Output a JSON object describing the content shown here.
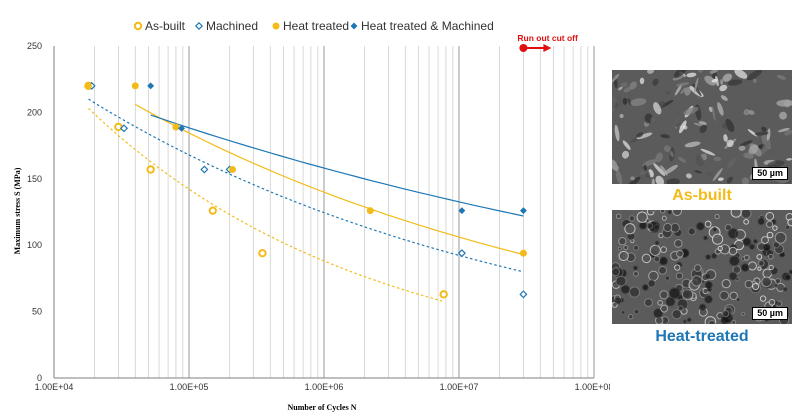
{
  "chart_data": {
    "type": "scatter",
    "x_scale": "log",
    "xlim": [
      10000,
      100000000
    ],
    "ylim": [
      0,
      250
    ],
    "xlabel": "Number  of Cycles N",
    "ylabel": "Maximum  stress S (MPa)",
    "x_ticks": [
      "1.00E+04",
      "1.00E+05",
      "1.00E+06",
      "1.00E+07",
      "1.00E+08"
    ],
    "y_ticks": [
      "0",
      "50",
      "100",
      "150",
      "200",
      "250"
    ],
    "grid": "vertical log grid",
    "legend_position": "top",
    "series": [
      {
        "name": "As-built",
        "marker": "circle-open",
        "color": "#f3bb19",
        "x": [
          18000,
          30000,
          52000,
          150000,
          350000,
          7700000
        ],
        "y": [
          220,
          189,
          157,
          126,
          94,
          63
        ],
        "trend": {
          "style": "dotted",
          "x": [
            18000,
            7500000
          ],
          "y": [
            203,
            58
          ]
        }
      },
      {
        "name": "Machined",
        "marker": "diamond-open",
        "color": "#1f77b4",
        "x": [
          19000,
          33000,
          130000,
          200000,
          10500000,
          30000000
        ],
        "y": [
          220,
          188,
          157,
          157,
          94,
          63
        ],
        "trend": {
          "style": "dotted",
          "x": [
            18000,
            30000000
          ],
          "y": [
            210,
            80
          ]
        }
      },
      {
        "name": "Heat treated",
        "marker": "circle-filled",
        "color": "#f3bb19",
        "x": [
          18000,
          40000,
          80000,
          210000,
          2200000,
          30000000
        ],
        "y": [
          220,
          220,
          189,
          157,
          126,
          94
        ],
        "trend": {
          "style": "solid",
          "x": [
            40000,
            30000000
          ],
          "y": [
            206,
            93
          ]
        }
      },
      {
        "name": "Heat treated & Machined",
        "marker": "diamond-filled",
        "color": "#1f77b4",
        "x": [
          52000,
          88000,
          10500000,
          30000000
        ],
        "y": [
          220,
          188,
          126,
          126
        ],
        "trend": {
          "style": "solid",
          "x": [
            52000,
            30000000
          ],
          "y": [
            198,
            122
          ]
        }
      }
    ],
    "annotation": {
      "text": "Run out cut off",
      "x": 30000000,
      "color": "#e01010"
    }
  },
  "images": [
    {
      "caption": "As-built",
      "caption_color": "#f3bb19",
      "scale_bar": "50 µm"
    },
    {
      "caption": "Heat-treated",
      "caption_color": "#1f77b4",
      "scale_bar": "50 µm"
    }
  ]
}
